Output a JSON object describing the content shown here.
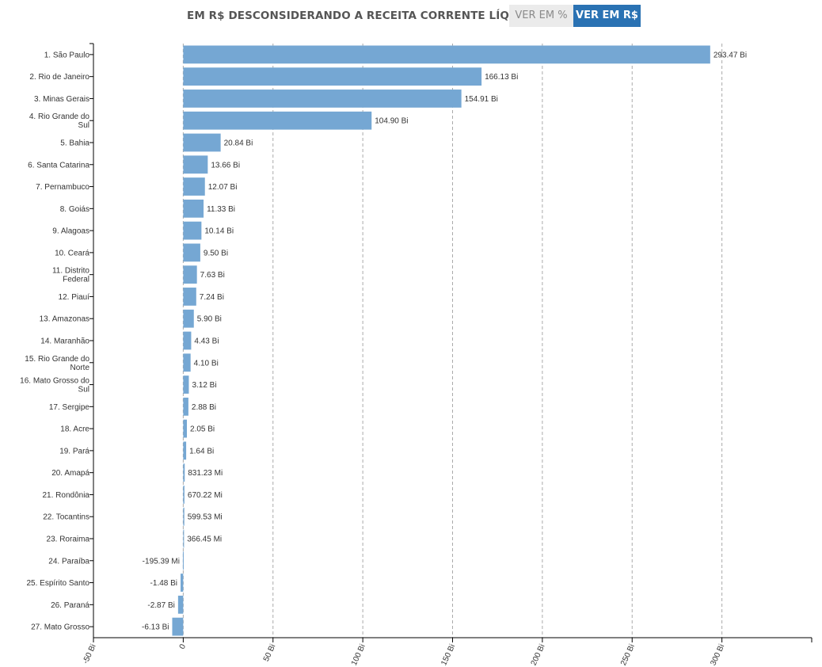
{
  "header": {
    "title": "EM R$ DESCONSIDERANDO A RECEITA CORRENTE LÍQUIDA",
    "toggle_percent_label": "VER EM %",
    "toggle_currency_label": "VER EM R$",
    "active_toggle": "currency"
  },
  "colors": {
    "bar": "#75a7d3",
    "active_toggle": "#2a72b3",
    "inactive_toggle": "#ebebeb",
    "grid": "#aaaaaa",
    "text": "#333333"
  },
  "chart_data": {
    "type": "bar",
    "orientation": "horizontal",
    "title": "",
    "xlabel": "",
    "ylabel": "",
    "unit": "Bi",
    "xlim": [
      -50,
      350
    ],
    "grid": "vertical-dashed",
    "x_ticks": [
      -50,
      0,
      50,
      100,
      150,
      200,
      250,
      300
    ],
    "x_tick_labels": [
      "-50 Bi",
      "0",
      "50 Bi",
      "100 Bi",
      "150 Bi",
      "200 Bi",
      "250 Bi",
      "300 Bi"
    ],
    "categories": [
      [
        "1. São Paulo"
      ],
      [
        "2. Rio de Janeiro"
      ],
      [
        "3. Minas Gerais"
      ],
      [
        "4. Rio Grande do",
        "Sul"
      ],
      [
        "5. Bahia"
      ],
      [
        "6. Santa Catarina"
      ],
      [
        "7. Pernambuco"
      ],
      [
        "8. Goiás"
      ],
      [
        "9. Alagoas"
      ],
      [
        "10. Ceará"
      ],
      [
        "11. Distrito",
        "Federal"
      ],
      [
        "12. Piauí"
      ],
      [
        "13. Amazonas"
      ],
      [
        "14. Maranhão"
      ],
      [
        "15. Rio Grande do",
        "Norte"
      ],
      [
        "16. Mato Grosso do",
        "Sul"
      ],
      [
        "17. Sergipe"
      ],
      [
        "18. Acre"
      ],
      [
        "19. Pará"
      ],
      [
        "20. Amapá"
      ],
      [
        "21. Rondônia"
      ],
      [
        "22. Tocantins"
      ],
      [
        "23. Roraima"
      ],
      [
        "24. Paraíba"
      ],
      [
        "25. Espírito Santo"
      ],
      [
        "26. Paraná"
      ],
      [
        "27. Mato Grosso"
      ]
    ],
    "values": [
      293.47,
      166.13,
      154.91,
      104.9,
      20.84,
      13.66,
      12.07,
      11.33,
      10.14,
      9.5,
      7.63,
      7.24,
      5.9,
      4.43,
      4.1,
      3.12,
      2.88,
      2.05,
      1.64,
      0.83123,
      0.67022,
      0.59953,
      0.36645,
      -0.19539,
      -1.48,
      -2.87,
      -6.13
    ],
    "value_labels": [
      "293.47 Bi",
      "166.13 Bi",
      "154.91 Bi",
      "104.90 Bi",
      "20.84 Bi",
      "13.66 Bi",
      "12.07 Bi",
      "11.33 Bi",
      "10.14 Bi",
      "9.50 Bi",
      "7.63 Bi",
      "7.24 Bi",
      "5.90 Bi",
      "4.43 Bi",
      "4.10 Bi",
      "3.12 Bi",
      "2.88 Bi",
      "2.05 Bi",
      "1.64 Bi",
      "831.23 Mi",
      "670.22 Mi",
      "599.53 Mi",
      "366.45 Mi",
      "-195.39 Mi",
      "-1.48 Bi",
      "-2.87 Bi",
      "-6.13 Bi"
    ]
  }
}
